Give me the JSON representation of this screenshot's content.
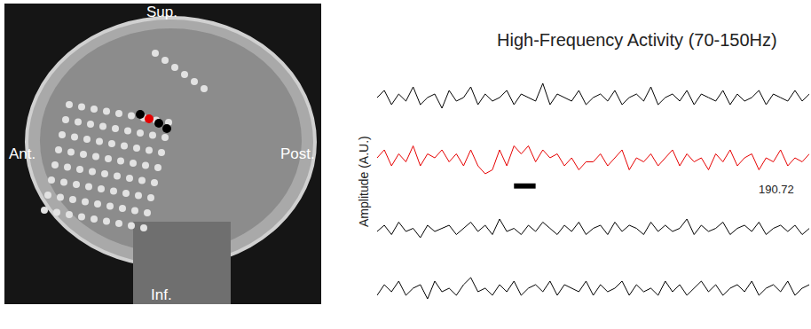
{
  "image": {
    "labels": {
      "superior": "Sup.",
      "anterior": "Ant.",
      "posterior": "Post.",
      "inferior": "Inf."
    },
    "electrodes": [
      {
        "color": "#000000"
      },
      {
        "color": "#e60000"
      },
      {
        "color": "#000000"
      },
      {
        "color": "#000000"
      }
    ]
  },
  "chart_data": {
    "type": "line",
    "title": "High-Frequency Activity (70-150Hz)",
    "ylabel": "Amplitude (A.U.)",
    "x": [
      0,
      1,
      2,
      3,
      4,
      5,
      6,
      7,
      8,
      9,
      10,
      11,
      12,
      13,
      14,
      15,
      16,
      17,
      18,
      19,
      20,
      21,
      22,
      23,
      24,
      25,
      26,
      27,
      28,
      29,
      30,
      31,
      32,
      33,
      34,
      35,
      36,
      37,
      38,
      39,
      40,
      41,
      42,
      43,
      44,
      45,
      46,
      47,
      48,
      49,
      50,
      51,
      52,
      53,
      54,
      55,
      56,
      57,
      58,
      59,
      60
    ],
    "xlim": [
      0,
      60
    ],
    "xticks": [],
    "ylim": [
      0,
      10
    ],
    "yticks": [],
    "tick_labels": false,
    "grid": false,
    "annotations": [
      {
        "text": "190.72"
      }
    ],
    "series": [
      {
        "color": "#000000",
        "values": [
          5,
          7,
          3,
          6,
          4,
          8,
          3,
          5,
          6,
          2,
          7,
          4,
          5,
          8,
          3,
          6,
          4,
          5,
          7,
          3,
          6,
          5,
          4,
          9,
          3,
          6,
          5,
          4,
          7,
          3,
          5,
          6,
          4,
          7,
          3,
          5,
          6,
          4,
          8,
          3,
          5,
          6,
          4,
          7,
          3,
          6,
          5,
          4,
          7,
          3,
          6,
          4,
          5,
          7,
          3,
          6,
          5,
          4,
          7,
          4,
          6
        ]
      },
      {
        "color": "#e60000",
        "marker_bar": [
          19,
          22
        ],
        "values": [
          6,
          8,
          4,
          7,
          5,
          9,
          4,
          7,
          6,
          8,
          5,
          7,
          4,
          8,
          4,
          2,
          3,
          8,
          4,
          9,
          7,
          9,
          5,
          8,
          6,
          7,
          4,
          6,
          3,
          5,
          5,
          7,
          4,
          6,
          8,
          3,
          6,
          5,
          7,
          4,
          6,
          8,
          4,
          7,
          5,
          6,
          3,
          7,
          5,
          8,
          4,
          6,
          7,
          3,
          6,
          5,
          8,
          4,
          6,
          5,
          7
        ]
      },
      {
        "color": "#000000",
        "values": [
          4,
          6,
          3,
          7,
          4,
          5,
          2,
          6,
          4,
          5,
          6,
          3,
          5,
          7,
          4,
          6,
          3,
          8,
          4,
          5,
          3,
          6,
          4,
          7,
          5,
          3,
          6,
          4,
          7,
          3,
          5,
          6,
          3,
          7,
          4,
          6,
          5,
          3,
          7,
          4,
          6,
          4,
          5,
          8,
          3,
          6,
          4,
          5,
          7,
          3,
          5,
          6,
          4,
          7,
          3,
          5,
          6,
          4,
          6,
          3,
          5
        ]
      },
      {
        "color": "#000000",
        "values": [
          3,
          6,
          4,
          7,
          3,
          5,
          6,
          2,
          7,
          4,
          5,
          3,
          6,
          8,
          4,
          5,
          3,
          6,
          4,
          7,
          3,
          5,
          6,
          4,
          7,
          3,
          6,
          5,
          4,
          7,
          3,
          6,
          4,
          5,
          7,
          3,
          6,
          4,
          5,
          3,
          7,
          4,
          6,
          3,
          5,
          7,
          4,
          6,
          3,
          5,
          6,
          4,
          7,
          3,
          5,
          6,
          4,
          7,
          3,
          5,
          6
        ]
      }
    ]
  }
}
